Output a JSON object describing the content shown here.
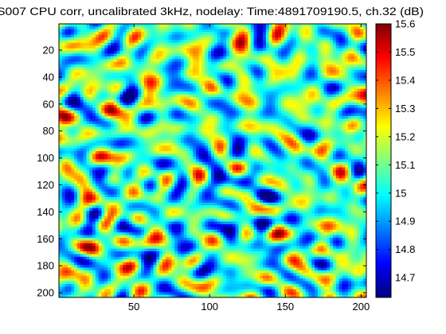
{
  "chart_data": {
    "type": "heatmap",
    "title": "S007 CPU corr, uncalibrated 3kHz, nodelay: Time:4891709190.5, ch.32 (dB)",
    "xlabel": "",
    "ylabel": "",
    "xlim": [
      1,
      203
    ],
    "ylim": [
      1,
      203
    ],
    "y_axis_direction": "reversed",
    "x_ticks": [
      "50",
      "100",
      "150",
      "200"
    ],
    "y_ticks": [
      "20",
      "40",
      "60",
      "80",
      "100",
      "120",
      "140",
      "160",
      "180",
      "200"
    ],
    "colorbar": {
      "colormap": "jet",
      "clim": [
        14.63,
        15.6
      ],
      "ticks": [
        "14.7",
        "14.8",
        "14.9",
        "15",
        "15.1",
        "15.2",
        "15.3",
        "15.4",
        "15.5",
        "15.6"
      ]
    },
    "grid": false,
    "description_of_values": "smooth random field of correlation power in dB, mostly between 14.9 and 15.3"
  }
}
